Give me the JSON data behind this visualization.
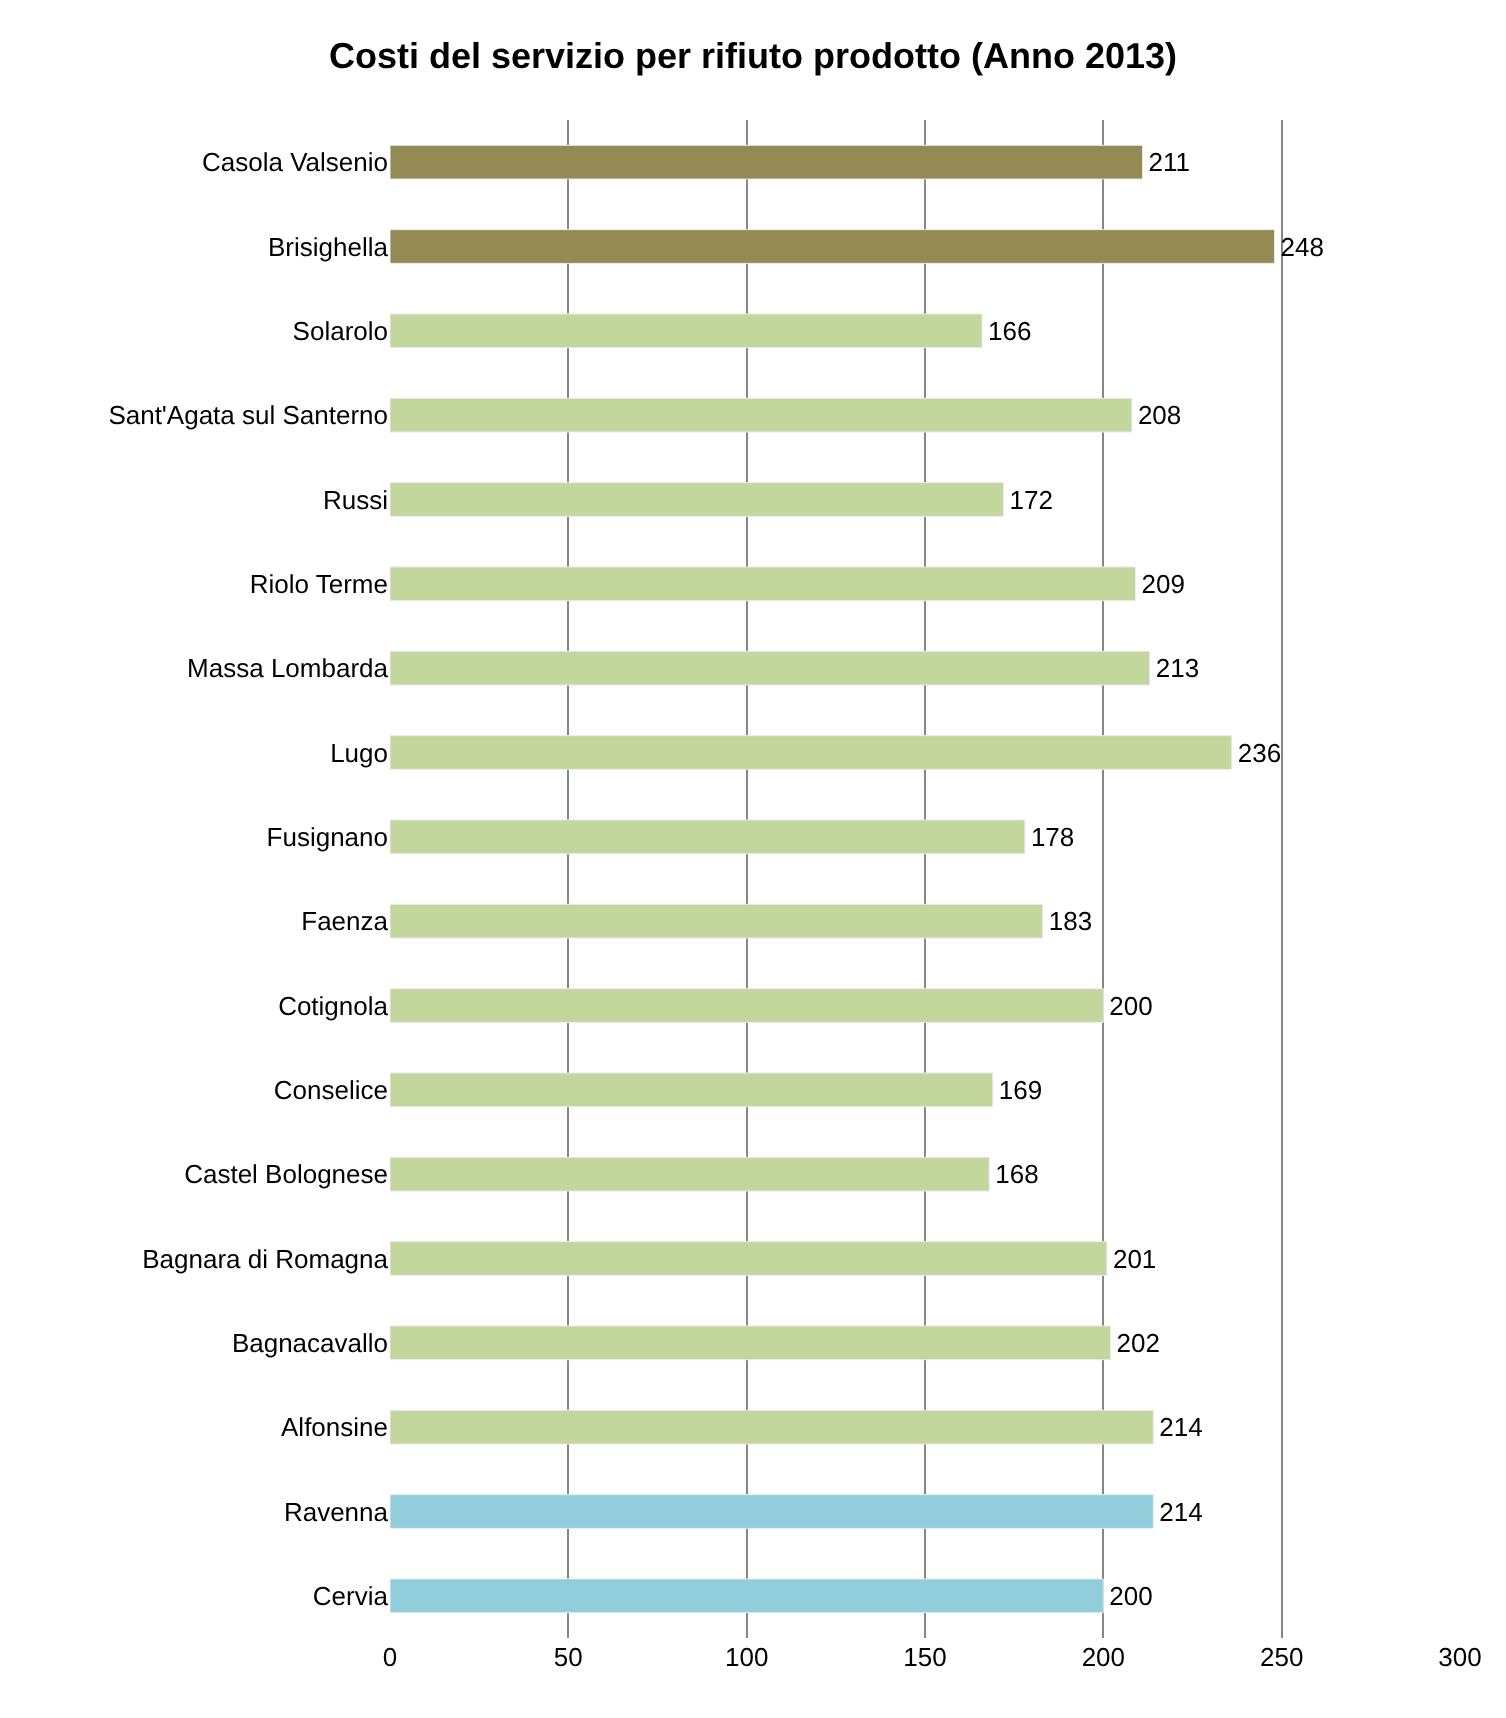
{
  "chart_data": {
    "type": "bar",
    "orientation": "horizontal",
    "title": "Costi del servizio per rifiuto prodotto (Anno 2013)",
    "categories": [
      "Casola Valsenio",
      "Brisighella",
      "Solarolo",
      "Sant'Agata sul Santerno",
      "Russi",
      "Riolo Terme",
      "Massa Lombarda",
      "Lugo",
      "Fusignano",
      "Faenza",
      "Cotignola",
      "Conselice",
      "Castel Bolognese",
      "Bagnara di Romagna",
      "Bagnacavallo",
      "Alfonsine",
      "Ravenna",
      "Cervia"
    ],
    "values": [
      211,
      248,
      166,
      208,
      172,
      209,
      213,
      236,
      178,
      183,
      200,
      169,
      168,
      201,
      202,
      214,
      214,
      200
    ],
    "colors": [
      "#948a54",
      "#948a54",
      "#c3d69b",
      "#c3d69b",
      "#c3d69b",
      "#c3d69b",
      "#c3d69b",
      "#c3d69b",
      "#c3d69b",
      "#c3d69b",
      "#c3d69b",
      "#c3d69b",
      "#c3d69b",
      "#c3d69b",
      "#c3d69b",
      "#c3d69b",
      "#92cddc",
      "#92cddc"
    ],
    "xlim": [
      0,
      300
    ],
    "xticks": [
      0,
      50,
      100,
      150,
      200,
      250,
      300
    ],
    "grid": "x",
    "data_labels": true,
    "legend": false
  }
}
